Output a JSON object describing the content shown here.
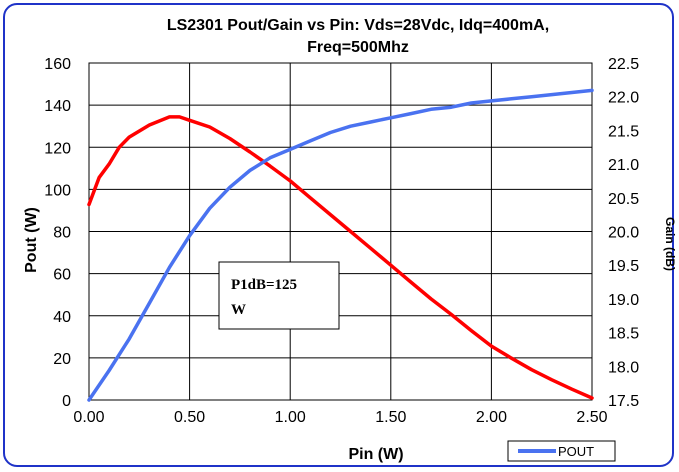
{
  "chart_data": {
    "type": "line",
    "title_lines": [
      "LS2301  Pout/Gain vs Pin: Vds=28Vdc, Idq=400mA,",
      "Freq=500Mhz"
    ],
    "xlabel": "Pin (W)",
    "ylabel_left": "Pout (W)",
    "ylabel_right": "Gain (dB)",
    "xlim": [
      0,
      2.5
    ],
    "ylim_left": [
      0,
      160
    ],
    "ylim_right": [
      17.5,
      22.5
    ],
    "x_ticks": [
      "0.00",
      "0.50",
      "1.00",
      "1.50",
      "2.00",
      "2.50"
    ],
    "y_left_ticks": [
      "0",
      "20",
      "40",
      "60",
      "80",
      "100",
      "120",
      "140",
      "160"
    ],
    "y_right_ticks": [
      "17.5",
      "18.0",
      "18.5",
      "19.0",
      "19.5",
      "20.0",
      "20.5",
      "21.0",
      "21.5",
      "22.0",
      "22.5"
    ],
    "grid": true,
    "legend_position": "bottom-right",
    "annotation": [
      "P1dB=125",
      "W"
    ],
    "series": [
      {
        "name": "POUT",
        "axis": "left",
        "color": "#4a72f0",
        "x": [
          0.0,
          0.1,
          0.2,
          0.3,
          0.4,
          0.5,
          0.6,
          0.7,
          0.8,
          0.9,
          1.0,
          1.1,
          1.2,
          1.3,
          1.4,
          1.5,
          1.6,
          1.7,
          1.8,
          1.9,
          2.0,
          2.1,
          2.2,
          2.3,
          2.4,
          2.5
        ],
        "values": [
          0,
          14,
          29,
          46,
          63,
          78,
          91,
          101,
          109,
          115,
          119,
          123,
          127,
          130,
          132,
          134,
          136,
          138,
          139,
          141,
          142,
          143,
          144,
          145,
          146,
          147
        ]
      },
      {
        "axis": "right",
        "color": "#ff0000",
        "x": [
          0.0,
          0.05,
          0.1,
          0.15,
          0.2,
          0.3,
          0.4,
          0.45,
          0.5,
          0.6,
          0.7,
          0.8,
          0.9,
          1.0,
          1.1,
          1.2,
          1.3,
          1.4,
          1.5,
          1.6,
          1.7,
          1.8,
          1.9,
          2.0,
          2.1,
          2.2,
          2.3,
          2.4,
          2.5
        ],
        "values": [
          20.4,
          20.8,
          21.0,
          21.25,
          21.4,
          21.58,
          21.7,
          21.7,
          21.65,
          21.55,
          21.38,
          21.18,
          20.97,
          20.75,
          20.5,
          20.25,
          20.0,
          19.75,
          19.5,
          19.25,
          19.0,
          18.77,
          18.53,
          18.3,
          18.12,
          17.95,
          17.8,
          17.66,
          17.53
        ]
      }
    ]
  }
}
